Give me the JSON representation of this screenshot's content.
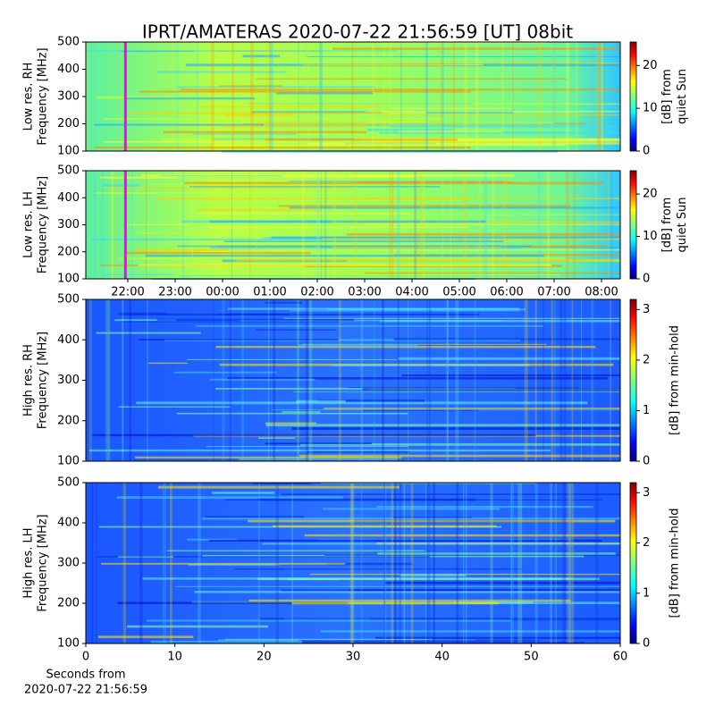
{
  "title": "IPRT/AMATERAS 2020-07-22 21:56:59 [UT]   08bit",
  "chart_data": [
    {
      "type": "heatmap",
      "ylabel": [
        "Low res. RH",
        "Frequency [MHz]"
      ],
      "xlim": [
        21.113,
        32.396
      ],
      "ylim": [
        100,
        500
      ],
      "yticks": [
        100,
        200,
        300,
        400,
        500
      ],
      "marker_x": 21.95,
      "marker_color": "#ff00ff",
      "colorbar": {
        "lim": [
          0,
          25.5
        ],
        "ticks": [
          0,
          10,
          20
        ],
        "label": [
          "[dB] from",
          "quiet Sun"
        ]
      }
    },
    {
      "type": "heatmap",
      "ylabel": [
        "Low res. LH",
        "Frequency [MHz]"
      ],
      "xlim": [
        21.113,
        32.396
      ],
      "ylim": [
        100,
        500
      ],
      "yticks": [
        100,
        200,
        300,
        400,
        500
      ],
      "xticks": [
        {
          "value": 22,
          "label": "22:00"
        },
        {
          "value": 23,
          "label": "23:00"
        },
        {
          "value": 24,
          "label": "00:00"
        },
        {
          "value": 25,
          "label": "01:00"
        },
        {
          "value": 26,
          "label": "02:00"
        },
        {
          "value": 27,
          "label": "03:00"
        },
        {
          "value": 28,
          "label": "04:00"
        },
        {
          "value": 29,
          "label": "05:00"
        },
        {
          "value": 30,
          "label": "06:00"
        },
        {
          "value": 31,
          "label": "07:00"
        },
        {
          "value": 32,
          "label": "08:00"
        }
      ],
      "marker_x": 21.95,
      "marker_color": "#ff00ff",
      "colorbar": {
        "lim": [
          0,
          25.5
        ],
        "ticks": [
          0,
          10,
          20
        ],
        "label": [
          "[dB] from",
          "quiet Sun"
        ]
      }
    },
    {
      "type": "heatmap",
      "ylabel": [
        "High res. RH",
        "Frequency [MHz]"
      ],
      "xlim": [
        0,
        60
      ],
      "ylim": [
        100,
        500
      ],
      "yticks": [
        100,
        200,
        300,
        400,
        500
      ],
      "colorbar": {
        "lim": [
          0,
          3.2
        ],
        "ticks": [
          0,
          1,
          2,
          3
        ],
        "label": [
          "[dB] from min-hold"
        ]
      }
    },
    {
      "type": "heatmap",
      "ylabel": [
        "High res. LH",
        "Frequency [MHz]"
      ],
      "xlim": [
        0,
        60
      ],
      "ylim": [
        100,
        500
      ],
      "yticks": [
        100,
        200,
        300,
        400,
        500
      ],
      "xticks": [
        0,
        10,
        20,
        30,
        40,
        50,
        60
      ],
      "xlabel": [
        "Seconds from",
        "2020-07-22 21:56:59"
      ],
      "colorbar": {
        "lim": [
          0,
          3.2
        ],
        "ticks": [
          0,
          1,
          2,
          3
        ],
        "label": [
          "[dB] from min-hold"
        ]
      }
    }
  ]
}
